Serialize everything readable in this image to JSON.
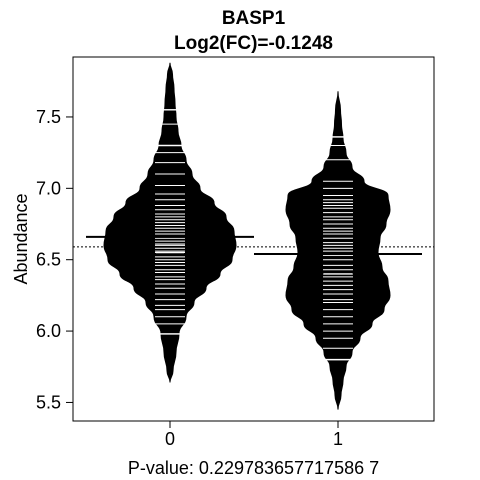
{
  "chart_data": {
    "type": "beanplot",
    "title": "BASP1",
    "subtitle": "Log2(FC)=-0.1248",
    "xlabel": "P-value: 0.229783657717586 7",
    "ylabel": "Abundance",
    "categories": [
      "0",
      "1"
    ],
    "ylim": [
      5.37,
      7.92
    ],
    "yticks": [
      5.5,
      6.0,
      6.5,
      7.0,
      7.5
    ],
    "ytick_labels": [
      "5.5",
      "6.0",
      "6.5",
      "7.0",
      "7.5"
    ],
    "overall_mean": 6.59,
    "overall_mean_style": "dotted",
    "group_means": [
      6.66,
      6.54
    ],
    "fill_color": "#000000",
    "rug_color": "#ffffff",
    "densities": [
      {
        "category": "0",
        "profile": [
          [
            5.64,
            0.0
          ],
          [
            5.72,
            3
          ],
          [
            5.85,
            6
          ],
          [
            5.98,
            9
          ],
          [
            6.1,
            16
          ],
          [
            6.2,
            24
          ],
          [
            6.3,
            36
          ],
          [
            6.4,
            50
          ],
          [
            6.5,
            62
          ],
          [
            6.6,
            66
          ],
          [
            6.7,
            64
          ],
          [
            6.8,
            56
          ],
          [
            6.9,
            44
          ],
          [
            7.0,
            30
          ],
          [
            7.1,
            22
          ],
          [
            7.2,
            16
          ],
          [
            7.3,
            11
          ],
          [
            7.4,
            8
          ],
          [
            7.5,
            6
          ],
          [
            7.6,
            5
          ],
          [
            7.7,
            4
          ],
          [
            7.8,
            2.5
          ],
          [
            7.88,
            0
          ]
        ],
        "rug": [
          5.98,
          6.05,
          6.1,
          6.15,
          6.18,
          6.22,
          6.26,
          6.3,
          6.33,
          6.36,
          6.38,
          6.41,
          6.43,
          6.46,
          6.48,
          6.5,
          6.52,
          6.55,
          6.56,
          6.58,
          6.6,
          6.61,
          6.63,
          6.65,
          6.66,
          6.68,
          6.7,
          6.72,
          6.74,
          6.76,
          6.78,
          6.8,
          6.82,
          6.85,
          6.88,
          6.92,
          6.96,
          7.02,
          7.1,
          7.18,
          7.25,
          7.3,
          7.45,
          7.55
        ],
        "rug_long": [
          5.98,
          6.55,
          7.3,
          7.55
        ]
      },
      {
        "category": "1",
        "profile": [
          [
            5.45,
            0.0
          ],
          [
            5.55,
            3
          ],
          [
            5.65,
            5
          ],
          [
            5.75,
            8
          ],
          [
            5.85,
            14
          ],
          [
            5.95,
            22
          ],
          [
            6.05,
            34
          ],
          [
            6.15,
            46
          ],
          [
            6.25,
            52
          ],
          [
            6.35,
            50
          ],
          [
            6.45,
            44
          ],
          [
            6.55,
            40
          ],
          [
            6.65,
            42
          ],
          [
            6.75,
            48
          ],
          [
            6.85,
            52
          ],
          [
            6.95,
            50
          ],
          [
            7.05,
            26
          ],
          [
            7.15,
            14
          ],
          [
            7.25,
            8
          ],
          [
            7.35,
            5
          ],
          [
            7.45,
            3.5
          ],
          [
            7.55,
            2.5
          ],
          [
            7.68,
            0
          ]
        ],
        "rug": [
          5.8,
          5.88,
          5.95,
          6.0,
          6.05,
          6.1,
          6.15,
          6.2,
          6.22,
          6.26,
          6.29,
          6.32,
          6.35,
          6.38,
          6.4,
          6.43,
          6.46,
          6.5,
          6.53,
          6.56,
          6.58,
          6.6,
          6.62,
          6.65,
          6.68,
          6.7,
          6.72,
          6.75,
          6.78,
          6.8,
          6.83,
          6.86,
          6.88,
          6.9,
          6.92,
          6.95,
          7.0,
          7.05,
          7.2,
          7.3,
          7.36
        ],
        "rug_long": [
          5.8,
          6.4,
          7.36
        ]
      }
    ]
  }
}
